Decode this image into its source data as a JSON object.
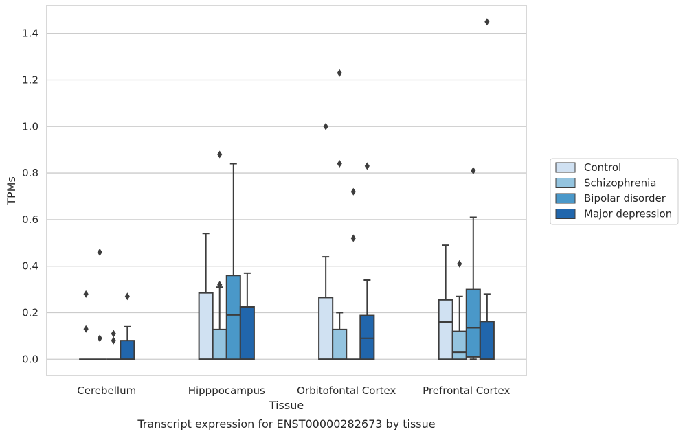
{
  "caption": "Transcript expression for ENST00000282673 by tissue",
  "chart_data": {
    "type": "boxplot",
    "xlabel": "Tissue",
    "ylabel": "TPMs",
    "ylim": [
      -0.07,
      1.52
    ],
    "yticks": [
      0.0,
      0.2,
      0.4,
      0.6,
      0.8,
      1.0,
      1.2,
      1.4
    ],
    "ytick_labels": [
      "0.0",
      "0.2",
      "0.4",
      "0.6",
      "0.8",
      "1.0",
      "1.2",
      "1.4"
    ],
    "grid": "horizontal",
    "legend_position": "right",
    "categories": [
      "Cerebellum",
      "Hipppocampus",
      "Orbitofontal Cortex",
      "Prefrontal Cortex"
    ],
    "series": [
      {
        "name": "Control",
        "color": "#d0e1f2",
        "boxes": [
          {
            "whislo": 0.0,
            "q1": 0.0,
            "med": 0.0,
            "q3": 0.0,
            "whishi": 0.0,
            "fliers": [
              0.13,
              0.28
            ]
          },
          {
            "whislo": 0.0,
            "q1": 0.0,
            "med": 0.0,
            "q3": 0.285,
            "whishi": 0.54,
            "fliers": []
          },
          {
            "whislo": 0.0,
            "q1": 0.0,
            "med": 0.0,
            "q3": 0.265,
            "whishi": 0.44,
            "fliers": [
              1.0
            ]
          },
          {
            "whislo": 0.0,
            "q1": 0.0,
            "med": 0.16,
            "q3": 0.255,
            "whishi": 0.49,
            "fliers": []
          }
        ]
      },
      {
        "name": "Schizophrenia",
        "color": "#94c4df",
        "boxes": [
          {
            "whislo": 0.0,
            "q1": 0.0,
            "med": 0.0,
            "q3": 0.0,
            "whishi": 0.0,
            "fliers": [
              0.09,
              0.46
            ]
          },
          {
            "whislo": 0.0,
            "q1": 0.0,
            "med": 0.0,
            "q3": 0.128,
            "whishi": 0.31,
            "fliers": [
              0.32,
              0.88
            ]
          },
          {
            "whislo": 0.0,
            "q1": 0.0,
            "med": 0.0,
            "q3": 0.128,
            "whishi": 0.2,
            "fliers": [
              0.84,
              1.23
            ]
          },
          {
            "whislo": 0.0,
            "q1": 0.0,
            "med": 0.03,
            "q3": 0.12,
            "whishi": 0.27,
            "fliers": [
              0.41
            ]
          }
        ]
      },
      {
        "name": "Bipolar disorder",
        "color": "#4a98c9",
        "boxes": [
          {
            "whislo": 0.0,
            "q1": 0.0,
            "med": 0.0,
            "q3": 0.0,
            "whishi": 0.0,
            "fliers": [
              0.08,
              0.11
            ]
          },
          {
            "whislo": 0.0,
            "q1": 0.0,
            "med": 0.19,
            "q3": 0.36,
            "whishi": 0.84,
            "fliers": []
          },
          {
            "whislo": 0.0,
            "q1": 0.0,
            "med": 0.0,
            "q3": 0.0,
            "whishi": 0.0,
            "fliers": [
              0.52,
              0.72
            ]
          },
          {
            "whislo": 0.0,
            "q1": 0.01,
            "med": 0.135,
            "q3": 0.3,
            "whishi": 0.61,
            "fliers": [
              0.81
            ]
          }
        ]
      },
      {
        "name": "Major depression",
        "color": "#2166ac",
        "boxes": [
          {
            "whislo": 0.0,
            "q1": 0.0,
            "med": 0.0,
            "q3": 0.08,
            "whishi": 0.14,
            "fliers": [
              0.27
            ]
          },
          {
            "whislo": 0.0,
            "q1": 0.0,
            "med": 0.0,
            "q3": 0.225,
            "whishi": 0.37,
            "fliers": []
          },
          {
            "whislo": 0.0,
            "q1": 0.0,
            "med": 0.09,
            "q3": 0.188,
            "whishi": 0.34,
            "fliers": [
              0.83
            ]
          },
          {
            "whislo": 0.0,
            "q1": 0.0,
            "med": 0.0,
            "q3": 0.162,
            "whishi": 0.28,
            "fliers": [
              1.45
            ]
          }
        ]
      }
    ]
  }
}
